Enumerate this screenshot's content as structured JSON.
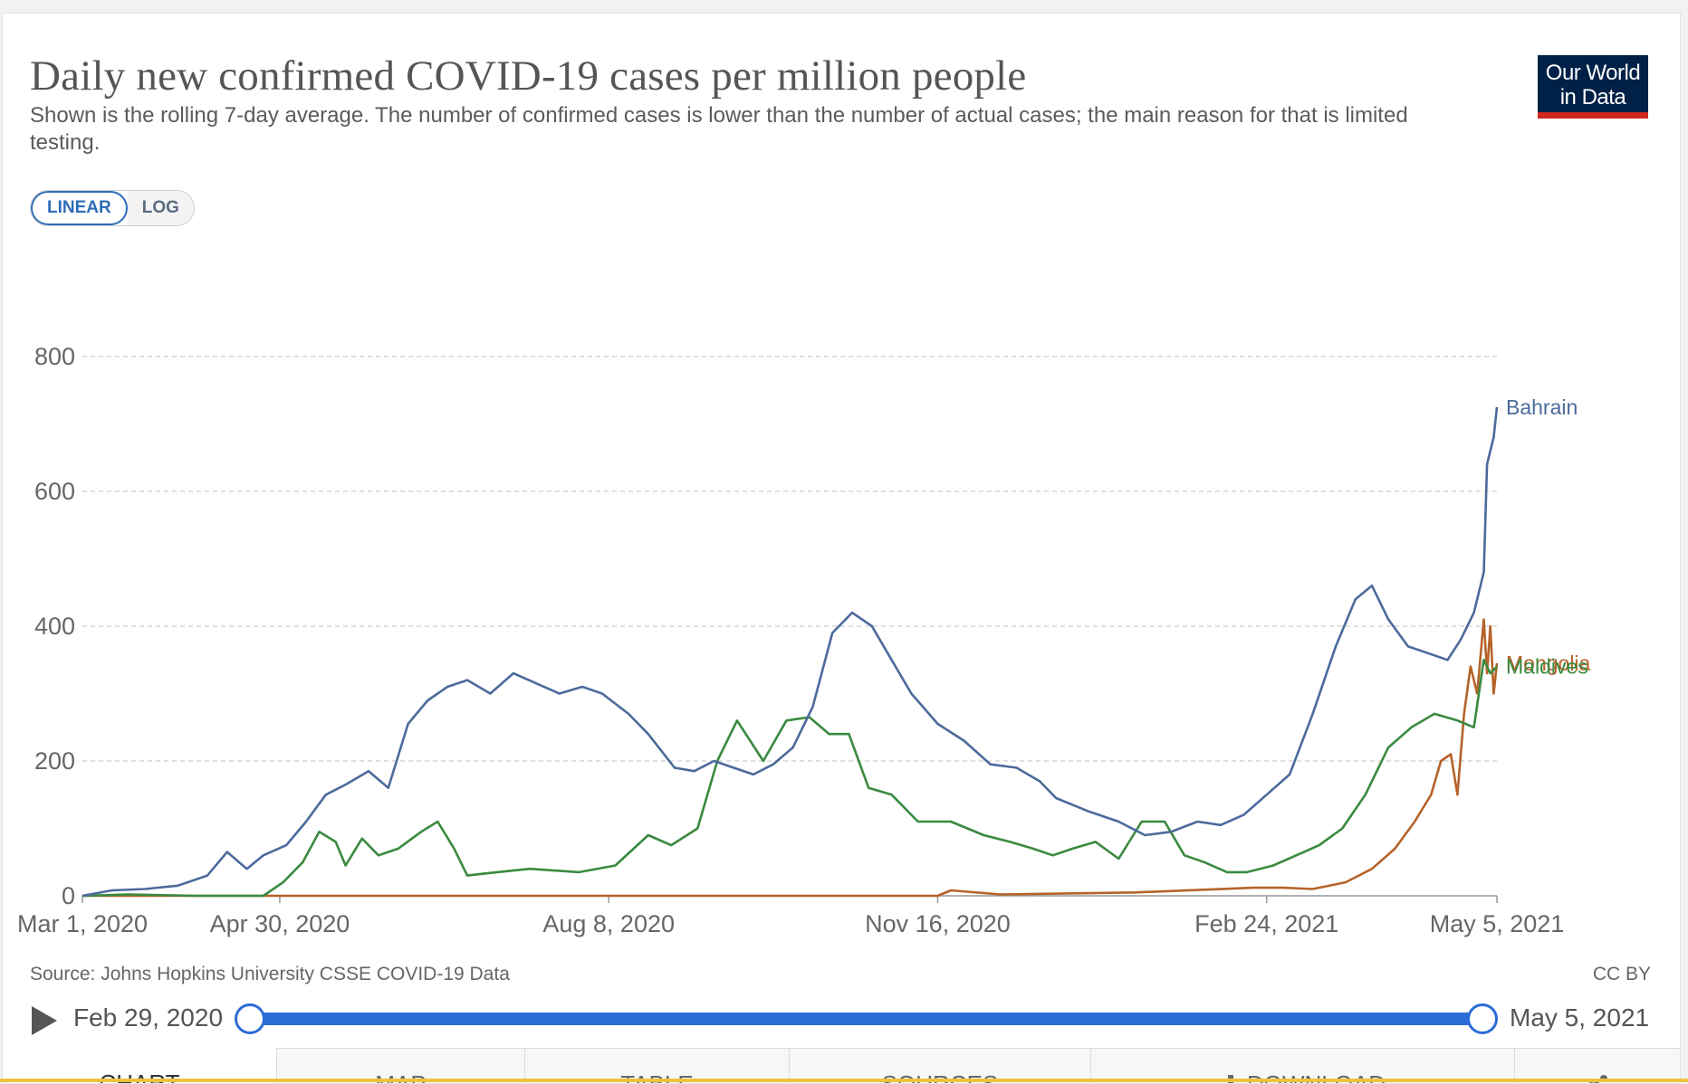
{
  "header": {
    "title": "Daily new confirmed COVID-19 cases per million people",
    "subtitle": "Shown is the rolling 7-day average. The number of confirmed cases is lower than the number of actual cases; the main reason for that is limited testing.",
    "logo_line1": "Our World",
    "logo_line2": "in Data"
  },
  "controls": {
    "linear_label": "LINEAR",
    "log_label": "LOG",
    "selected_scale": "LINEAR"
  },
  "footer": {
    "source": "Source: Johns Hopkins University CSSE COVID-19 Data",
    "license": "CC BY"
  },
  "timeline": {
    "start_label": "Feb 29, 2020",
    "end_label": "May 5, 2021",
    "play_icon": "play-icon"
  },
  "tabs": [
    {
      "label": "CHART",
      "active": true
    },
    {
      "label": "MAP",
      "active": false
    },
    {
      "label": "TABLE",
      "active": false
    },
    {
      "label": "SOURCES",
      "active": false
    },
    {
      "label": "DOWNLOAD",
      "active": false,
      "icon": "download-icon"
    },
    {
      "label": "",
      "active": false,
      "icon": "share-icon"
    }
  ],
  "chart_data": {
    "type": "line",
    "title": "Daily new confirmed COVID-19 cases per million people",
    "xlabel": "",
    "ylabel": "",
    "x_range": [
      "2020-03-01",
      "2021-05-05"
    ],
    "ylim": [
      0,
      950
    ],
    "y_ticks": [
      0,
      200,
      400,
      600,
      800
    ],
    "x_ticks": [
      "Mar 1, 2020",
      "Apr 30, 2020",
      "Aug 8, 2020",
      "Nov 16, 2020",
      "Feb 24, 2021",
      "May 5, 2021"
    ],
    "x_tick_dates": [
      "2020-03-01",
      "2020-04-30",
      "2020-08-08",
      "2020-11-16",
      "2021-02-24",
      "2021-05-05"
    ],
    "grid": "horizontal dashed",
    "legend": "line-end labels",
    "series": [
      {
        "name": "Maldives",
        "color": "#3a8a3e",
        "points": [
          [
            "2020-03-01",
            0
          ],
          [
            "2020-03-15",
            2
          ],
          [
            "2020-04-05",
            0
          ],
          [
            "2020-04-25",
            0
          ],
          [
            "2020-05-01",
            20
          ],
          [
            "2020-05-07",
            50
          ],
          [
            "2020-05-12",
            95
          ],
          [
            "2020-05-17",
            80
          ],
          [
            "2020-05-20",
            45
          ],
          [
            "2020-05-25",
            85
          ],
          [
            "2020-05-30",
            60
          ],
          [
            "2020-06-05",
            70
          ],
          [
            "2020-06-12",
            95
          ],
          [
            "2020-06-17",
            110
          ],
          [
            "2020-06-22",
            70
          ],
          [
            "2020-06-26",
            30
          ],
          [
            "2020-07-05",
            35
          ],
          [
            "2020-07-15",
            40
          ],
          [
            "2020-07-30",
            35
          ],
          [
            "2020-08-10",
            45
          ],
          [
            "2020-08-20",
            90
          ],
          [
            "2020-08-27",
            75
          ],
          [
            "2020-09-04",
            100
          ],
          [
            "2020-09-10",
            200
          ],
          [
            "2020-09-16",
            260
          ],
          [
            "2020-09-24",
            200
          ],
          [
            "2020-10-01",
            260
          ],
          [
            "2020-10-08",
            265
          ],
          [
            "2020-10-14",
            240
          ],
          [
            "2020-10-20",
            240
          ],
          [
            "2020-10-26",
            160
          ],
          [
            "2020-11-02",
            150
          ],
          [
            "2020-11-10",
            110
          ],
          [
            "2020-11-20",
            110
          ],
          [
            "2020-11-30",
            90
          ],
          [
            "2020-12-08",
            80
          ],
          [
            "2020-12-15",
            70
          ],
          [
            "2020-12-21",
            60
          ],
          [
            "2020-12-27",
            70
          ],
          [
            "2021-01-03",
            80
          ],
          [
            "2021-01-10",
            55
          ],
          [
            "2021-01-17",
            110
          ],
          [
            "2021-01-24",
            110
          ],
          [
            "2021-01-30",
            60
          ],
          [
            "2021-02-05",
            50
          ],
          [
            "2021-02-12",
            35
          ],
          [
            "2021-02-18",
            35
          ],
          [
            "2021-02-26",
            45
          ],
          [
            "2021-03-05",
            60
          ],
          [
            "2021-03-12",
            75
          ],
          [
            "2021-03-19",
            100
          ],
          [
            "2021-03-26",
            150
          ],
          [
            "2021-04-02",
            220
          ],
          [
            "2021-04-09",
            250
          ],
          [
            "2021-04-16",
            270
          ],
          [
            "2021-04-23",
            260
          ],
          [
            "2021-04-28",
            250
          ],
          [
            "2021-05-01",
            350
          ],
          [
            "2021-05-03",
            330
          ],
          [
            "2021-05-05",
            340
          ]
        ]
      },
      {
        "name": "Bahrain",
        "color": "#4c6a9c",
        "points": [
          [
            "2020-03-01",
            0
          ],
          [
            "2020-03-10",
            8
          ],
          [
            "2020-03-20",
            10
          ],
          [
            "2020-03-30",
            15
          ],
          [
            "2020-04-08",
            30
          ],
          [
            "2020-04-14",
            65
          ],
          [
            "2020-04-20",
            40
          ],
          [
            "2020-04-25",
            60
          ],
          [
            "2020-05-02",
            75
          ],
          [
            "2020-05-08",
            110
          ],
          [
            "2020-05-14",
            150
          ],
          [
            "2020-05-20",
            165
          ],
          [
            "2020-05-27",
            185
          ],
          [
            "2020-06-02",
            160
          ],
          [
            "2020-06-08",
            255
          ],
          [
            "2020-06-14",
            290
          ],
          [
            "2020-06-20",
            310
          ],
          [
            "2020-06-26",
            320
          ],
          [
            "2020-07-03",
            300
          ],
          [
            "2020-07-10",
            330
          ],
          [
            "2020-07-17",
            315
          ],
          [
            "2020-07-24",
            300
          ],
          [
            "2020-07-31",
            310
          ],
          [
            "2020-08-06",
            300
          ],
          [
            "2020-08-14",
            270
          ],
          [
            "2020-08-20",
            240
          ],
          [
            "2020-08-28",
            190
          ],
          [
            "2020-09-03",
            185
          ],
          [
            "2020-09-09",
            200
          ],
          [
            "2020-09-15",
            190
          ],
          [
            "2020-09-21",
            180
          ],
          [
            "2020-09-27",
            195
          ],
          [
            "2020-10-03",
            220
          ],
          [
            "2020-10-09",
            280
          ],
          [
            "2020-10-15",
            390
          ],
          [
            "2020-10-21",
            420
          ],
          [
            "2020-10-27",
            400
          ],
          [
            "2020-11-02",
            350
          ],
          [
            "2020-11-08",
            300
          ],
          [
            "2020-11-16",
            255
          ],
          [
            "2020-11-24",
            230
          ],
          [
            "2020-12-02",
            195
          ],
          [
            "2020-12-10",
            190
          ],
          [
            "2020-12-17",
            170
          ],
          [
            "2020-12-22",
            145
          ],
          [
            "2021-01-01",
            125
          ],
          [
            "2021-01-10",
            110
          ],
          [
            "2021-01-18",
            90
          ],
          [
            "2021-01-26",
            95
          ],
          [
            "2021-02-03",
            110
          ],
          [
            "2021-02-10",
            105
          ],
          [
            "2021-02-17",
            120
          ],
          [
            "2021-02-24",
            150
          ],
          [
            "2021-03-03",
            180
          ],
          [
            "2021-03-10",
            270
          ],
          [
            "2021-03-17",
            370
          ],
          [
            "2021-03-23",
            440
          ],
          [
            "2021-03-28",
            460
          ],
          [
            "2021-04-02",
            410
          ],
          [
            "2021-04-08",
            370
          ],
          [
            "2021-04-14",
            360
          ],
          [
            "2021-04-20",
            350
          ],
          [
            "2021-04-24",
            380
          ],
          [
            "2021-04-28",
            420
          ],
          [
            "2021-05-01",
            480
          ],
          [
            "2021-05-02",
            640
          ],
          [
            "2021-05-03",
            660
          ],
          [
            "2021-05-04",
            680
          ],
          [
            "2021-05-05",
            725
          ]
        ]
      },
      {
        "name": "Mongolia",
        "color": "#b5632a",
        "points": [
          [
            "2020-03-01",
            0
          ],
          [
            "2020-05-01",
            0
          ],
          [
            "2020-08-01",
            0
          ],
          [
            "2020-11-16",
            0
          ],
          [
            "2020-11-20",
            8
          ],
          [
            "2020-12-05",
            2
          ],
          [
            "2021-01-15",
            5
          ],
          [
            "2021-02-20",
            12
          ],
          [
            "2021-03-01",
            12
          ],
          [
            "2021-03-10",
            10
          ],
          [
            "2021-03-20",
            20
          ],
          [
            "2021-03-28",
            40
          ],
          [
            "2021-04-04",
            70
          ],
          [
            "2021-04-10",
            110
          ],
          [
            "2021-04-15",
            150
          ],
          [
            "2021-04-18",
            200
          ],
          [
            "2021-04-21",
            210
          ],
          [
            "2021-04-23",
            150
          ],
          [
            "2021-04-25",
            270
          ],
          [
            "2021-04-27",
            340
          ],
          [
            "2021-04-29",
            300
          ],
          [
            "2021-05-01",
            410
          ],
          [
            "2021-05-02",
            330
          ],
          [
            "2021-05-03",
            400
          ],
          [
            "2021-05-04",
            300
          ],
          [
            "2021-05-05",
            345
          ]
        ]
      }
    ]
  }
}
